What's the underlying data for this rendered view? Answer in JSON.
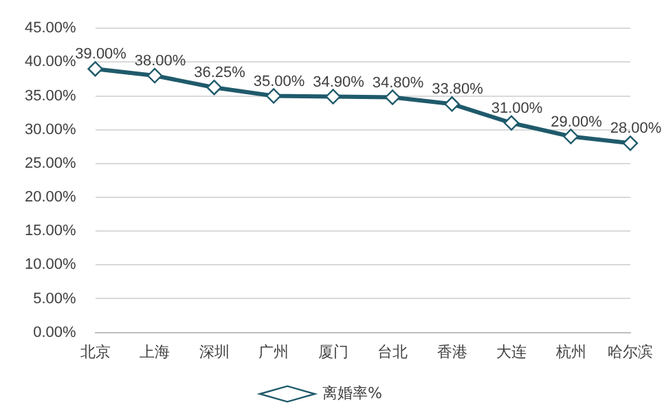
{
  "chart_data": {
    "type": "line",
    "categories": [
      "北京",
      "上海",
      "深圳",
      "广州",
      "厦门",
      "台北",
      "香港",
      "大连",
      "杭州",
      "哈尔滨"
    ],
    "series": [
      {
        "name": "离婚率%",
        "color": "#1f5a6b",
        "values": [
          39,
          38,
          36.25,
          35,
          34.9,
          34.8,
          33.8,
          31,
          29,
          28
        ],
        "value_labels": [
          "39.00%",
          "38.00%",
          "36.25%",
          "35.00%",
          "34.90%",
          "34.80%",
          "33.80%",
          "31.00%",
          "29.00%",
          "28.00%"
        ]
      }
    ],
    "ylim": [
      0,
      45
    ],
    "yticks": [
      {
        "value": 0,
        "label": "0.00%"
      },
      {
        "value": 5,
        "label": "5.00%"
      },
      {
        "value": 10,
        "label": "10.00%"
      },
      {
        "value": 15,
        "label": "15.00%"
      },
      {
        "value": 20,
        "label": "20.00%"
      },
      {
        "value": 25,
        "label": "25.00%"
      },
      {
        "value": 30,
        "label": "30.00%"
      },
      {
        "value": 35,
        "label": "35.00%"
      },
      {
        "value": 40,
        "label": "40.00%"
      },
      {
        "value": 45,
        "label": "45.00%"
      }
    ],
    "grid": "y",
    "legend": "bottom",
    "marker": "diamond",
    "line_style": "solid"
  }
}
